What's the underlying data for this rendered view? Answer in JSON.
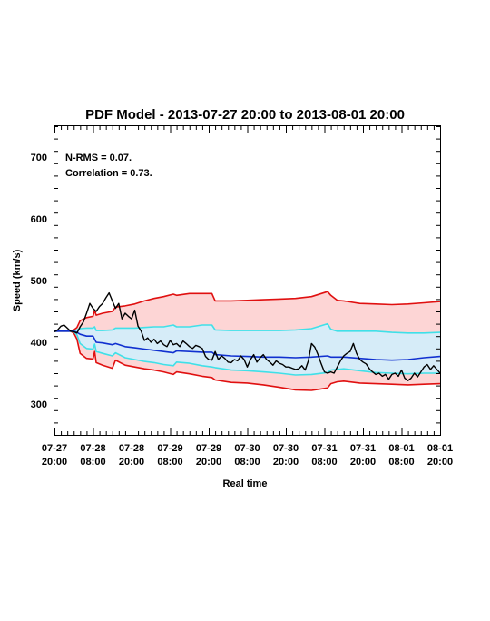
{
  "chart_data": {
    "type": "line",
    "title": "PDF Model - 2013-07-27 20:00 to 2013-08-01 20:00",
    "xlabel": "Real time",
    "ylabel": "Speed (km/s)",
    "annotations": [
      "N-RMS = 0.07.",
      "Correlation = 0.73."
    ],
    "xlim": [
      0,
      120
    ],
    "ylim": [
      250,
      750
    ],
    "x_ticks": [
      {
        "x": 0,
        "line1": "07-27",
        "line2": "20:00"
      },
      {
        "x": 12,
        "line1": "07-28",
        "line2": "08:00"
      },
      {
        "x": 24,
        "line1": "07-28",
        "line2": "20:00"
      },
      {
        "x": 36,
        "line1": "07-29",
        "line2": "08:00"
      },
      {
        "x": 48,
        "line1": "07-29",
        "line2": "20:00"
      },
      {
        "x": 60,
        "line1": "07-30",
        "line2": "08:00"
      },
      {
        "x": 72,
        "line1": "07-30",
        "line2": "20:00"
      },
      {
        "x": 84,
        "line1": "07-31",
        "line2": "08:00"
      },
      {
        "x": 96,
        "line1": "07-31",
        "line2": "20:00"
      },
      {
        "x": 108,
        "line1": "08-01",
        "line2": "08:00"
      },
      {
        "x": 120,
        "line1": "08-01",
        "line2": "20:00"
      }
    ],
    "y_ticks": [
      300,
      400,
      500,
      600,
      700
    ],
    "colors": {
      "outer_band_fill": "#fdd5d5",
      "inner_band_fill": "#d6ecf8",
      "outer_line": "#e01010",
      "inner_line": "#40e0e8",
      "median_line": "#1030d0",
      "observed_line": "#000000"
    },
    "bands": {
      "x": [
        0,
        5,
        6,
        7,
        8,
        10,
        12,
        12.5,
        13,
        15,
        18,
        19,
        22,
        25,
        28,
        31,
        34,
        37,
        38,
        42,
        46,
        49,
        50,
        55,
        60,
        65,
        70,
        75,
        80,
        85,
        86,
        88,
        90,
        95,
        100,
        105,
        110,
        115,
        120
      ],
      "outer_upper": [
        418,
        419,
        420,
        424,
        435,
        440,
        442,
        452,
        444,
        447,
        450,
        457,
        459,
        462,
        467,
        471,
        474,
        478,
        476,
        479,
        479,
        479,
        467,
        467,
        468,
        469,
        470,
        471,
        474,
        482,
        476,
        468,
        467,
        463,
        462,
        461,
        462,
        464,
        466
      ],
      "inner_upper": [
        418,
        419,
        419,
        420,
        422,
        423,
        423,
        425,
        419,
        419,
        420,
        423,
        423,
        423,
        424,
        425,
        425,
        428,
        425,
        425,
        428,
        428,
        420,
        419,
        419,
        419,
        419,
        420,
        422,
        430,
        421,
        418,
        418,
        418,
        418,
        416,
        415,
        415,
        416
      ],
      "median": [
        418,
        418,
        418,
        416,
        413,
        410,
        410,
        405,
        400,
        399,
        396,
        398,
        393,
        391,
        389,
        387,
        385,
        383,
        386,
        385,
        384,
        384,
        380,
        378,
        377,
        376,
        376,
        375,
        376,
        378,
        376,
        376,
        376,
        374,
        372,
        371,
        372,
        375,
        377
      ],
      "inner_lower": [
        418,
        418,
        417,
        412,
        398,
        390,
        389,
        397,
        385,
        382,
        378,
        383,
        375,
        372,
        369,
        367,
        364,
        362,
        368,
        366,
        362,
        360,
        359,
        355,
        354,
        352,
        350,
        347,
        348,
        351,
        355,
        356,
        357,
        354,
        351,
        350,
        349,
        350,
        350
      ],
      "outer_lower": [
        418,
        418,
        415,
        405,
        382,
        374,
        373,
        385,
        367,
        363,
        358,
        371,
        363,
        360,
        357,
        355,
        352,
        348,
        352,
        349,
        345,
        343,
        339,
        335,
        334,
        331,
        327,
        323,
        322,
        326,
        333,
        336,
        337,
        334,
        333,
        332,
        331,
        332,
        333
      ]
    },
    "observed": {
      "x": [
        0,
        1,
        2,
        3,
        4,
        5,
        6,
        7,
        8,
        9,
        10,
        11,
        12,
        13,
        14,
        15,
        16,
        17,
        18,
        19,
        20,
        21,
        22,
        23,
        24,
        25,
        26,
        27,
        28,
        29,
        30,
        31,
        32,
        33,
        34,
        35,
        36,
        37,
        38,
        39,
        40,
        41,
        42,
        43,
        44,
        45,
        46,
        47,
        48,
        49,
        50,
        51,
        52,
        53,
        54,
        55,
        56,
        57,
        58,
        59,
        60,
        61,
        62,
        63,
        64,
        65,
        66,
        67,
        68,
        69,
        70,
        71,
        72,
        73,
        74,
        75,
        76,
        77,
        78,
        79,
        80,
        81,
        82,
        83,
        84,
        85,
        86,
        87,
        88,
        89,
        90,
        91,
        92,
        93,
        94,
        95,
        96,
        97,
        98,
        99,
        100,
        101,
        102,
        103,
        104,
        105,
        106,
        107,
        108,
        109,
        110,
        111,
        112,
        113,
        114,
        115,
        116,
        117,
        118,
        119,
        120
      ],
      "y": [
        417,
        420,
        426,
        428,
        423,
        418,
        417,
        415,
        425,
        433,
        447,
        463,
        455,
        450,
        458,
        463,
        472,
        480,
        467,
        455,
        463,
        438,
        447,
        442,
        438,
        452,
        426,
        418,
        403,
        407,
        400,
        405,
        398,
        402,
        396,
        393,
        403,
        396,
        398,
        393,
        402,
        398,
        393,
        390,
        395,
        393,
        390,
        377,
        372,
        371,
        385,
        372,
        378,
        374,
        368,
        367,
        372,
        370,
        378,
        372,
        360,
        372,
        380,
        368,
        375,
        380,
        372,
        368,
        363,
        370,
        366,
        364,
        360,
        360,
        358,
        356,
        357,
        362,
        355,
        370,
        398,
        392,
        380,
        365,
        352,
        350,
        352,
        350,
        360,
        370,
        378,
        382,
        385,
        398,
        382,
        372,
        368,
        365,
        357,
        352,
        348,
        350,
        345,
        348,
        340,
        348,
        350,
        345,
        355,
        342,
        338,
        342,
        350,
        344,
        352,
        360,
        364,
        356,
        362,
        356,
        350
      ]
    }
  }
}
